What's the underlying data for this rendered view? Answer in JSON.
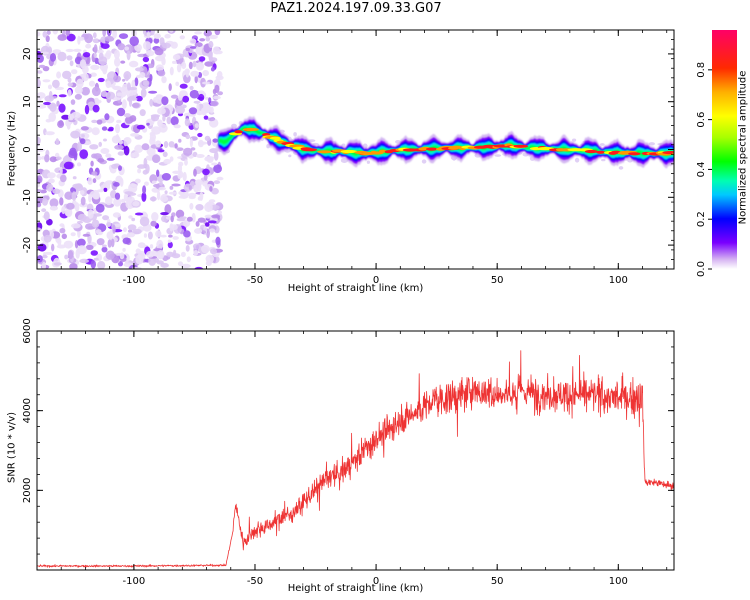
{
  "title": "PAZ1.2024.197.09.33.G07",
  "chart_data": [
    {
      "type": "heatmap",
      "xlabel": "Height of straight line (km)",
      "ylabel": "Frequency (Hz)",
      "xlim": [
        -140,
        123
      ],
      "ylim": [
        -25,
        25
      ],
      "x_ticks": [
        -100,
        -50,
        0,
        50,
        100
      ],
      "y_ticks": [
        -20,
        -10,
        0,
        10,
        20
      ],
      "noise_region_x": [
        -140,
        -66
      ],
      "ridge": {
        "x": [
          -66,
          -63,
          -60,
          -57,
          -54,
          -50,
          -46,
          -42,
          -38,
          -34,
          -30,
          -25,
          -20,
          -15,
          -10,
          -5,
          0,
          5,
          10,
          20,
          30,
          40,
          50,
          55,
          60,
          70,
          80,
          90,
          95,
          100,
          110,
          123
        ],
        "y": [
          2,
          1.5,
          2.5,
          3.8,
          4.4,
          4.0,
          3.2,
          2.3,
          1.4,
          0.8,
          0.1,
          -0.3,
          -0.4,
          -0.4,
          -0.6,
          -0.8,
          -0.6,
          -0.4,
          -0.1,
          0.1,
          0.3,
          0.4,
          0.6,
          0.9,
          0.5,
          0.2,
          -0.1,
          -0.3,
          -0.6,
          -0.7,
          -0.8,
          -0.8
        ]
      },
      "colorbar": {
        "label": "Normalized spectral amplitude",
        "ticks": [
          0.0,
          0.2,
          0.4,
          0.6,
          0.8
        ],
        "range": [
          0,
          0.96
        ]
      }
    },
    {
      "type": "line",
      "xlabel": "Height of straight line (km)",
      "ylabel": "SNR (10 * v/v)",
      "xlim": [
        -140,
        123
      ],
      "ylim": [
        0,
        6000
      ],
      "x_ticks": [
        -100,
        -50,
        0,
        50,
        100
      ],
      "y_ticks": [
        2000,
        4000,
        6000
      ],
      "series": [
        {
          "color": "#ee3333",
          "x": [
            -140,
            -100,
            -62,
            -59,
            -58,
            -55,
            -50,
            -45,
            -40,
            -35,
            -30,
            -25,
            -20,
            -15,
            -10,
            -5,
            0,
            5,
            10,
            15,
            20,
            25,
            30,
            35,
            40,
            50,
            60,
            70,
            80,
            90,
            100,
            110,
            111,
            115,
            123
          ],
          "y": [
            100,
            100,
            120,
            1000,
            1700,
            700,
            1000,
            1100,
            1300,
            1400,
            1700,
            2000,
            2300,
            2400,
            2700,
            3000,
            3300,
            3500,
            3800,
            3900,
            4100,
            4300,
            4300,
            4400,
            4500,
            4400,
            4500,
            4400,
            4400,
            4400,
            4300,
            4300,
            2200,
            2200,
            2100
          ]
        }
      ]
    }
  ]
}
